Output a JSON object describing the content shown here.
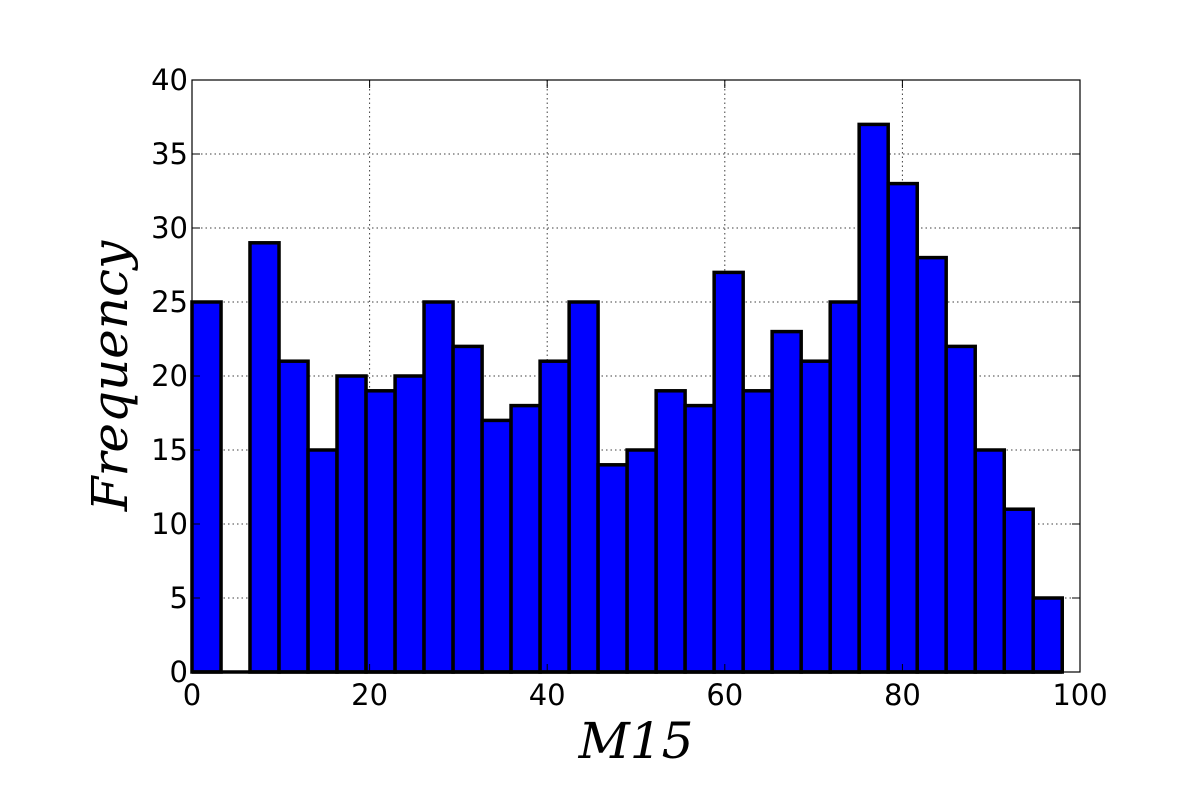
{
  "chart_data": {
    "type": "bar",
    "subtype": "histogram",
    "title": "",
    "xlabel": "M15",
    "ylabel": "Frequency",
    "xlim": [
      0,
      100
    ],
    "ylim": [
      0,
      40
    ],
    "xticks": [
      0,
      20,
      40,
      60,
      80,
      100
    ],
    "yticks": [
      0,
      5,
      10,
      15,
      20,
      25,
      30,
      35,
      40
    ],
    "grid": true,
    "bar_color": "#0000ff",
    "edge_color": "#000000",
    "bins": [
      {
        "x0": 0.0,
        "x1": 3.27,
        "count": 25
      },
      {
        "x0": 3.27,
        "x1": 6.53,
        "count": 0
      },
      {
        "x0": 6.53,
        "x1": 9.8,
        "count": 29
      },
      {
        "x0": 9.8,
        "x1": 13.07,
        "count": 21
      },
      {
        "x0": 13.07,
        "x1": 16.33,
        "count": 15
      },
      {
        "x0": 16.33,
        "x1": 19.6,
        "count": 20
      },
      {
        "x0": 19.6,
        "x1": 22.87,
        "count": 19
      },
      {
        "x0": 22.87,
        "x1": 26.13,
        "count": 20
      },
      {
        "x0": 26.13,
        "x1": 29.4,
        "count": 25
      },
      {
        "x0": 29.4,
        "x1": 32.67,
        "count": 22
      },
      {
        "x0": 32.67,
        "x1": 35.93,
        "count": 17
      },
      {
        "x0": 35.93,
        "x1": 39.2,
        "count": 18
      },
      {
        "x0": 39.2,
        "x1": 42.47,
        "count": 21
      },
      {
        "x0": 42.47,
        "x1": 45.73,
        "count": 25
      },
      {
        "x0": 45.73,
        "x1": 49.0,
        "count": 14
      },
      {
        "x0": 49.0,
        "x1": 52.27,
        "count": 15
      },
      {
        "x0": 52.27,
        "x1": 55.53,
        "count": 19
      },
      {
        "x0": 55.53,
        "x1": 58.8,
        "count": 18
      },
      {
        "x0": 58.8,
        "x1": 62.07,
        "count": 27
      },
      {
        "x0": 62.07,
        "x1": 65.33,
        "count": 19
      },
      {
        "x0": 65.33,
        "x1": 68.6,
        "count": 23
      },
      {
        "x0": 68.6,
        "x1": 71.87,
        "count": 21
      },
      {
        "x0": 71.87,
        "x1": 75.13,
        "count": 25
      },
      {
        "x0": 75.13,
        "x1": 78.4,
        "count": 37
      },
      {
        "x0": 78.4,
        "x1": 81.67,
        "count": 33
      },
      {
        "x0": 81.67,
        "x1": 84.93,
        "count": 28
      },
      {
        "x0": 84.93,
        "x1": 88.2,
        "count": 22
      },
      {
        "x0": 88.2,
        "x1": 91.47,
        "count": 15
      },
      {
        "x0": 91.47,
        "x1": 94.73,
        "count": 11
      },
      {
        "x0": 94.73,
        "x1": 98.0,
        "count": 5
      }
    ]
  }
}
